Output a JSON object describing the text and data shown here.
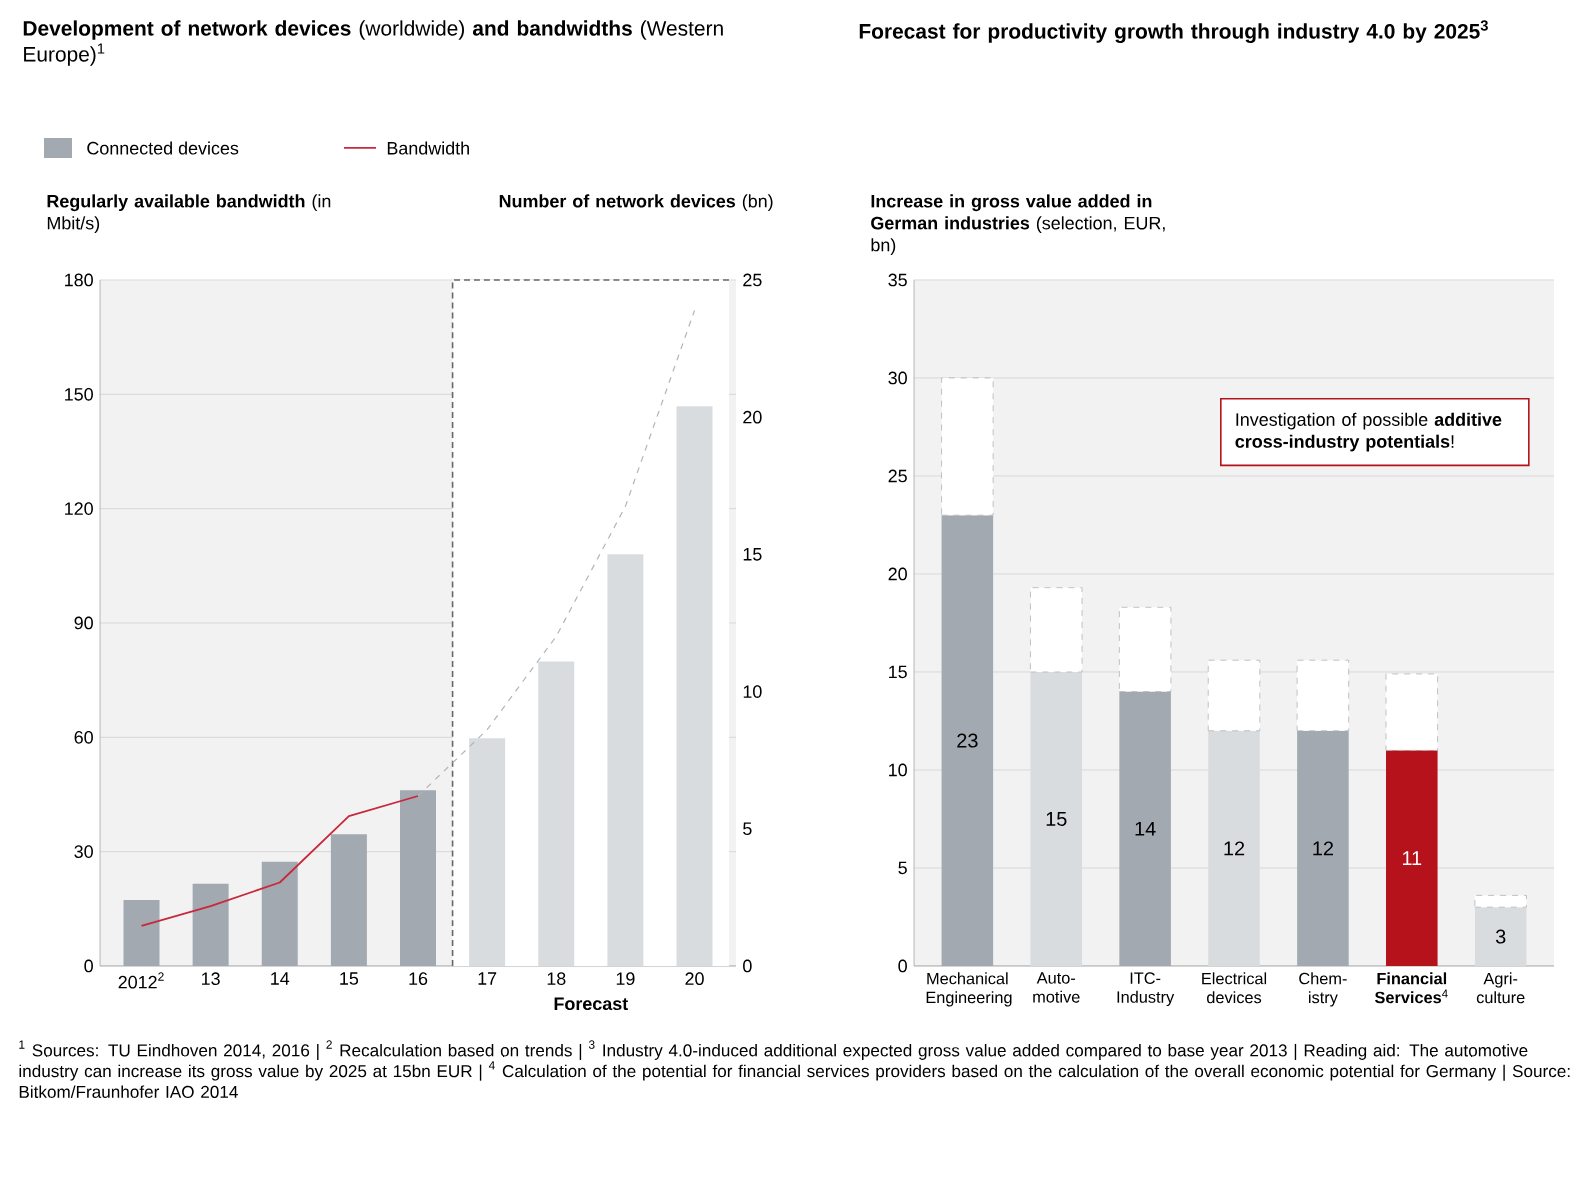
{
  "chart_data": [
    {
      "type": "bar",
      "title": "**Development of network devices** (worldwide) **and bandwidths** (Western Europe)$^{1}$",
      "ylabel": "**Regularly available bandwidth** (in Mbit/s)",
      "y2label": "**Number of network devices** (bn)",
      "categories": [
        "2012$^{2}$",
        "13",
        "14",
        "15",
        "16",
        "17",
        "18",
        "19",
        "20"
      ],
      "series": [
        {
          "name": "Connected devices",
          "type": "bar",
          "axis": "y2",
          "color": "#a3a9b0",
          "colors": [
            "#a3a9b0",
            "#a3a9b0",
            "#a3a9b0",
            "#a3a9b0",
            "#a3a9b0",
            "#d9dcdf",
            "#d9dcdf",
            "#d9dcdf",
            "#d9dcdf"
          ],
          "values": [
            2.4,
            3.0,
            3.8,
            4.8,
            6.4,
            8.3,
            11.1,
            15.0,
            20.4
          ]
        },
        {
          "name": "Bandwidth",
          "type": "line",
          "color": "#c8283c",
          "values": [
            10.5,
            15.7,
            21.9,
            39.3,
            44.6,
            null,
            null,
            null,
            null
          ]
        },
        {
          "type": "line",
          "color": "#b4b4b4",
          "line_style": "dashed",
          "values": [
            null,
            null,
            null,
            null,
            44.6,
            62,
            86.5,
            120.6,
            172
          ]
        }
      ],
      "ylim": [
        0,
        180
      ],
      "yticks": [
        0,
        30,
        60,
        90,
        120,
        150,
        180
      ],
      "y2lim": [
        0,
        25
      ],
      "y2ticks": [
        0,
        5,
        10,
        15,
        20,
        25
      ],
      "grid": "y",
      "legend": "top left",
      "bands": [
        {
          "axis": "x",
          "from": "17",
          "to": "20",
          "label": "Forecast",
          "color": "#ffffff"
        }
      ],
      "annotations": [
        "$^{1}$ Sources: TU Eindhoven 2014, 2016 | $^{2}$ Recalculation based on trends | $^{3}$ Industry 4.0-induced additional expected gross value added compared to base year 2013 | Reading aid: The automotive industry can increase its gross value by 2025 at 15bn EUR | $^{4}$ Calculation of the potential for financial services providers based on the calculation of the overall economic potential for Germany | Source: Bitkom/Fraunhofer IAO 2014"
      ]
    },
    {
      "type": "bar",
      "title": "Forecast for productivity growth through industry 4.0 by 2025$^{3}$",
      "ylabel": "**Increase in gross value added in German industries** (selection, EUR, bn)",
      "categories": [
        "Mechanical Engineering",
        "Auto- motive",
        "ITC- Industry",
        "Electrical devices",
        "Chem- istry",
        "**Financial Services**$^{4}$",
        "Agri- culture"
      ],
      "stacked": true,
      "series": [
        {
          "colors": [
            "#a3a9b0",
            "#d9dcdf",
            "#a3a9b0",
            "#d9dcdf",
            "#a3a9b0",
            "#b5121b",
            "#d9dcdf"
          ],
          "values": [
            23,
            15,
            14,
            12,
            12,
            11,
            3
          ],
          "value_labels": [
            "23",
            "15",
            "14",
            "12",
            "12",
            "11",
            "3"
          ]
        },
        {
          "color": "#ffffff",
          "line_style": "dashed",
          "values": [
            7,
            4.3,
            4.3,
            3.6,
            3.6,
            3.9,
            0.6
          ]
        }
      ],
      "ylim": [
        0,
        35
      ],
      "yticks": [
        0,
        5,
        10,
        15,
        20,
        25,
        30,
        35
      ],
      "grid": "y",
      "annotations": [
        "Investigation of possible **additive cross-industry potentials**!"
      ]
    }
  ]
}
